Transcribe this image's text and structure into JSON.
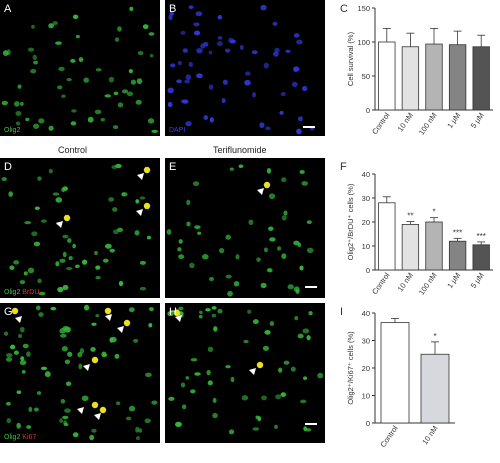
{
  "panels": {
    "A": {
      "label": "A",
      "stain": [
        {
          "text": "Olig2",
          "color": "#39c33f"
        }
      ]
    },
    "B": {
      "label": "B",
      "stain": [
        {
          "text": "DAPI",
          "color": "#3344ff"
        }
      ]
    },
    "D": {
      "label": "D",
      "stain": [
        {
          "text": "Olig2",
          "color": "#39c33f"
        },
        {
          "text": " BrDU",
          "color": "#e03030"
        }
      ]
    },
    "E": {
      "label": "E"
    },
    "G": {
      "label": "G",
      "stain": [
        {
          "text": "Olig2",
          "color": "#39c33f"
        },
        {
          "text": " Ki67",
          "color": "#e03030"
        }
      ]
    },
    "H": {
      "label": "H"
    }
  },
  "condition_labels": {
    "control": "Control",
    "treated": "Teriflunomide"
  },
  "colors": {
    "cell_green": "#35b53a",
    "double_yellow": "#e8e020",
    "arrowhead": "#ffffff"
  },
  "chart_data": [
    {
      "panel": "C",
      "type": "bar",
      "categories": [
        "Control",
        "10 nM",
        "100 nM",
        "1 μM",
        "5 μM"
      ],
      "values": [
        100,
        93,
        97,
        96,
        93
      ],
      "errors": [
        20,
        20,
        23,
        20,
        17
      ],
      "colors": [
        "#ffffff",
        "#e2e2e2",
        "#b4b4b4",
        "#848484",
        "#545454"
      ],
      "ylabel": "Cell survival (%)",
      "ylim": [
        0,
        150
      ],
      "yticks": [
        0,
        50,
        100,
        150
      ],
      "significance": [
        "",
        "",
        "",
        "",
        ""
      ]
    },
    {
      "panel": "F",
      "type": "bar",
      "categories": [
        "Control",
        "10 nM",
        "100 nM",
        "1 μM",
        "5 μM"
      ],
      "values": [
        28,
        19,
        20,
        12,
        10.5
      ],
      "errors": [
        2.5,
        1.2,
        1.8,
        1.2,
        1.2
      ],
      "colors": [
        "#ffffff",
        "#e2e2e2",
        "#b4b4b4",
        "#848484",
        "#545454"
      ],
      "ylabel": "Olig2⁺/BrDU⁺ cells (%)",
      "ylim": [
        0,
        40
      ],
      "yticks": [
        0,
        10,
        20,
        30,
        40
      ],
      "significance": [
        "",
        "**",
        "*",
        "***",
        "***"
      ]
    },
    {
      "panel": "I",
      "type": "bar",
      "categories": [
        "Control",
        "10 nM"
      ],
      "values": [
        36.5,
        25
      ],
      "errors": [
        1.5,
        4.5
      ],
      "colors": [
        "#ffffff",
        "#d6d8de"
      ],
      "ylabel": "Olig2⁺/Ki67⁺ cells (%)",
      "ylim": [
        0,
        40
      ],
      "yticks": [
        0,
        10,
        20,
        30,
        40
      ],
      "significance": [
        "",
        "*"
      ]
    }
  ]
}
